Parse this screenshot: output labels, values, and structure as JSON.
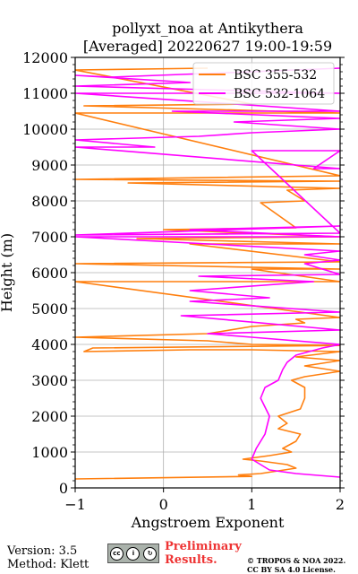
{
  "chart_data": {
    "type": "line",
    "title": "pollyxt_noa at Antikythera",
    "subtitle": "[Averaged] 20220627 19:00-19:59",
    "xlabel": "Angstroem Exponent",
    "ylabel": "Height (m)",
    "xlim": [
      -1,
      2
    ],
    "ylim": [
      0,
      12000
    ],
    "xticks": [
      -1,
      0,
      1,
      2
    ],
    "yticks": [
      0,
      1000,
      2000,
      3000,
      4000,
      5000,
      6000,
      7000,
      8000,
      9000,
      10000,
      11000,
      12000
    ],
    "grid": true,
    "legend_position": "top-right",
    "series": [
      {
        "name": "BSC 355-532",
        "color": "#ff7f0e",
        "points": [
          [
            -1.0,
            250
          ],
          [
            1.0,
            320
          ],
          [
            0.85,
            360
          ],
          [
            1.1,
            400
          ],
          [
            1.5,
            550
          ],
          [
            1.4,
            650
          ],
          [
            1.1,
            750
          ],
          [
            0.9,
            800
          ],
          [
            1.2,
            900
          ],
          [
            1.45,
            1000
          ],
          [
            1.35,
            1100
          ],
          [
            1.5,
            1300
          ],
          [
            1.55,
            1500
          ],
          [
            1.3,
            1650
          ],
          [
            1.4,
            1800
          ],
          [
            1.3,
            2000
          ],
          [
            1.55,
            2200
          ],
          [
            1.6,
            2500
          ],
          [
            1.6,
            2800
          ],
          [
            1.45,
            3000
          ],
          [
            1.6,
            3100
          ],
          [
            2.0,
            3250
          ],
          [
            1.6,
            3400
          ],
          [
            2.0,
            3550
          ],
          [
            1.5,
            3650
          ],
          [
            2.0,
            3800
          ],
          [
            1.0,
            3850
          ],
          [
            0.3,
            3850
          ],
          [
            -0.9,
            3800
          ],
          [
            -0.8,
            3900
          ],
          [
            2.0,
            3970
          ],
          [
            1.0,
            4000
          ],
          [
            0.5,
            4100
          ],
          [
            -1.0,
            4200
          ],
          [
            0.5,
            4300
          ],
          [
            1.0,
            4500
          ],
          [
            1.6,
            4600
          ],
          [
            1.5,
            4700
          ],
          [
            2.0,
            4750
          ],
          [
            -1.0,
            5750
          ],
          [
            2.0,
            5750
          ],
          [
            1.0,
            6100
          ],
          [
            2.0,
            6100
          ],
          [
            -1.0,
            6250
          ],
          [
            2.0,
            6300
          ],
          [
            0.3,
            6800
          ],
          [
            2.0,
            6800
          ],
          [
            -0.3,
            6950
          ],
          [
            2.0,
            7000
          ],
          [
            0.0,
            7200
          ],
          [
            1.5,
            7250
          ],
          [
            1.1,
            7950
          ],
          [
            1.6,
            8000
          ],
          [
            1.4,
            8300
          ],
          [
            2.0,
            8350
          ],
          [
            -0.4,
            8500
          ],
          [
            2.0,
            8550
          ],
          [
            -1.0,
            8600
          ],
          [
            2.0,
            8700
          ],
          [
            -1.0,
            10450
          ],
          [
            2.0,
            10450
          ],
          [
            -0.9,
            10650
          ],
          [
            1.0,
            10700
          ],
          [
            -1.0,
            11650
          ],
          [
            0.5,
            11700
          ]
        ]
      },
      {
        "name": "BSC 532-1064",
        "color": "#ff00ff",
        "points": [
          [
            2.0,
            300
          ],
          [
            1.5,
            400
          ],
          [
            1.2,
            500
          ],
          [
            1.0,
            800
          ],
          [
            1.05,
            1100
          ],
          [
            1.15,
            1500
          ],
          [
            1.2,
            2000
          ],
          [
            1.1,
            2500
          ],
          [
            1.15,
            2800
          ],
          [
            1.3,
            3000
          ],
          [
            1.35,
            3300
          ],
          [
            1.4,
            3500
          ],
          [
            1.5,
            3700
          ],
          [
            1.8,
            3900
          ],
          [
            2.0,
            4000
          ],
          [
            1.0,
            4200
          ],
          [
            0.5,
            4300
          ],
          [
            2.0,
            4400
          ],
          [
            0.2,
            4800
          ],
          [
            2.0,
            4900
          ],
          [
            0.3,
            5200
          ],
          [
            1.2,
            5300
          ],
          [
            0.3,
            5500
          ],
          [
            1.7,
            5750
          ],
          [
            0.4,
            5900
          ],
          [
            2.0,
            5950
          ],
          [
            1.6,
            6250
          ],
          [
            2.0,
            6350
          ],
          [
            1.6,
            6500
          ],
          [
            2.0,
            6600
          ],
          [
            -1.0,
            7000
          ],
          [
            2.0,
            7000
          ],
          [
            0.3,
            7200
          ],
          [
            2.0,
            7300
          ],
          [
            -1.0,
            7050
          ],
          [
            2.0,
            7100
          ],
          [
            1.0,
            9400
          ],
          [
            2.0,
            9400
          ],
          [
            1.7,
            8900
          ],
          [
            2.0,
            8900
          ],
          [
            -1.0,
            9500
          ],
          [
            -0.1,
            9500
          ],
          [
            -1.0,
            9700
          ],
          [
            0.4,
            9800
          ],
          [
            1.0,
            9900
          ],
          [
            2.0,
            10000
          ],
          [
            0.8,
            10200
          ],
          [
            2.0,
            10300
          ],
          [
            0.1,
            10500
          ],
          [
            2.0,
            10500
          ],
          [
            -1.0,
            11000
          ],
          [
            2.0,
            11000
          ],
          [
            -1.0,
            11200
          ],
          [
            0.3,
            11300
          ],
          [
            -1.0,
            11500
          ],
          [
            -0.6,
            11450
          ],
          [
            1.0,
            11600
          ],
          [
            2.0,
            11700
          ]
        ]
      }
    ]
  },
  "footer": {
    "version": "Version: 3.5",
    "method": "Method: Klett",
    "license_badge": "cc by sa",
    "preliminary_line1": "Preliminary",
    "preliminary_line2": "Results.",
    "copyright_line1": "© TROPOS & NOA 2022.",
    "copyright_line2": "CC BY SA 4.0 License."
  }
}
